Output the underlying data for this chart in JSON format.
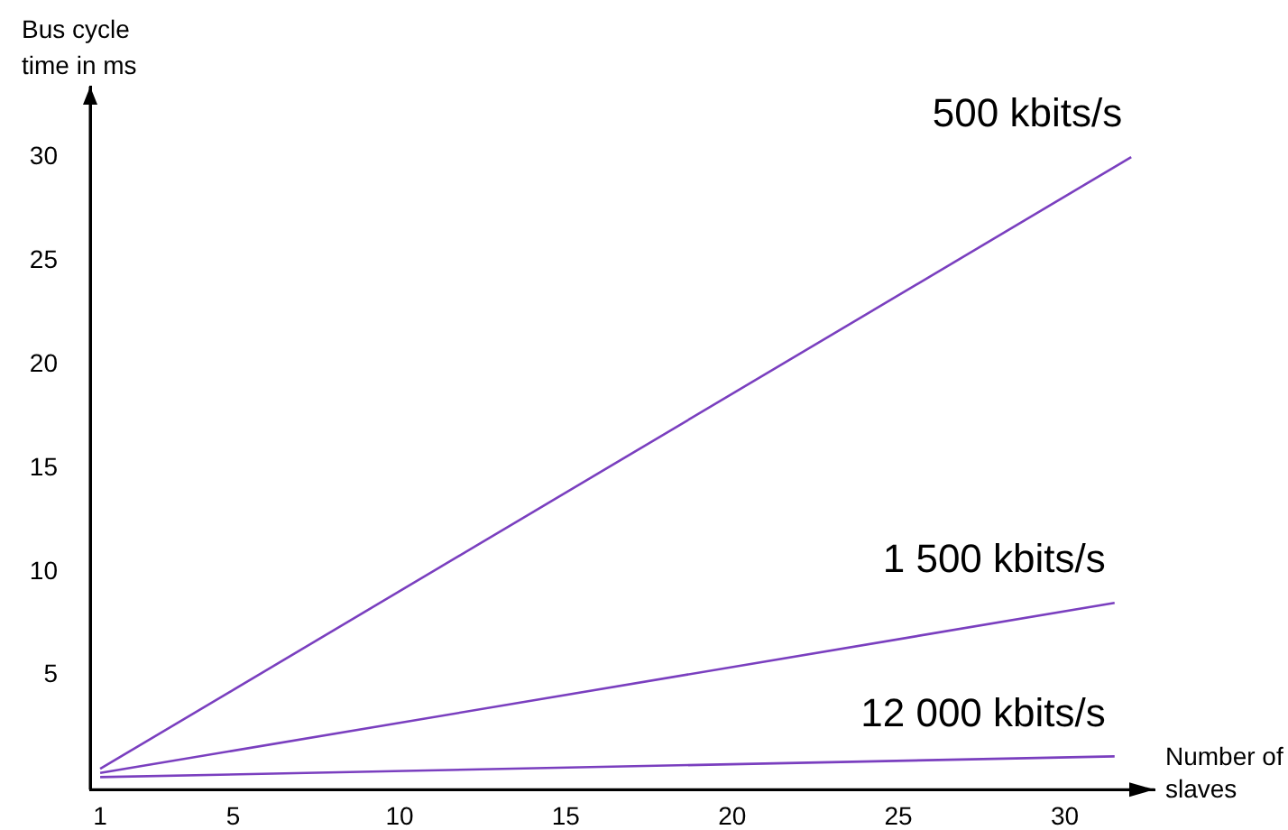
{
  "chart_data": {
    "type": "line",
    "xlabel": "Number of slaves",
    "ylabel": "Bus cycle time in ms",
    "xlim": [
      0.7,
      32.7
    ],
    "ylim": [
      -0.5,
      33.4
    ],
    "xticks": [
      1,
      5,
      10,
      15,
      20,
      25,
      30
    ],
    "yticks": [
      5,
      10,
      15,
      20,
      25,
      30
    ],
    "grid": false,
    "legend": false,
    "marker": "none",
    "line_style": "solid",
    "series": [
      {
        "name": "500 kbits/s",
        "color": "#7a3fbf",
        "x": [
          1,
          32
        ],
        "values": [
          0.5,
          30
        ]
      },
      {
        "name": "1 500 kbits/s",
        "color": "#7a3fbf",
        "x": [
          1,
          31.5
        ],
        "values": [
          0.3,
          8.5
        ]
      },
      {
        "name": "12 000 kbits/s",
        "color": "#7a3fbf",
        "x": [
          1,
          31.5
        ],
        "values": [
          0.1,
          1.1
        ]
      }
    ]
  }
}
